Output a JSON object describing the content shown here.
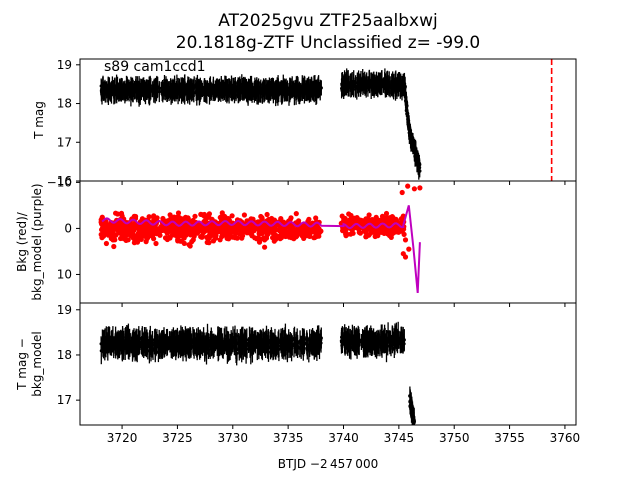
{
  "chart_data": {
    "title_line1": "AT2025gvu  ZTF25aalbxwj",
    "title_line2": "20.1818g-ZTF Unclassified z= -99.0",
    "xlabel": "BTJD −2 457 000",
    "x_ticks": [
      3720,
      3725,
      3730,
      3735,
      3740,
      3745,
      3750,
      3755,
      3760
    ],
    "xlim": [
      3716.2,
      3761.0
    ],
    "colors": {
      "flux": "#000000",
      "bkg": "#ff0000",
      "bkg_model": "#bf00bf",
      "marker_line": "#ff0000"
    },
    "panels": [
      {
        "type": "scatter",
        "ylabel": "T mag",
        "ylim": [
          19.15,
          16.0
        ],
        "y_ticks": [
          16,
          17,
          18,
          19
        ],
        "annotation": "s89 cam1ccd1",
        "vline_x": 3758.8,
        "segments": [
          {
            "x_range": [
              3718.1,
              3738.0
            ],
            "level": 18.35,
            "scatter": 0.22
          },
          {
            "x_range": [
              3739.8,
              3745.5
            ],
            "level": 18.5,
            "scatter": 0.25
          }
        ],
        "rise": {
          "x": [
            3745.5,
            3745.8,
            3746.1,
            3746.4,
            3746.7,
            3746.9
          ],
          "y": [
            18.5,
            17.6,
            17.1,
            16.8,
            16.5,
            16.3
          ]
        }
      },
      {
        "type": "scatter",
        "ylabel": "Bkg (red)/\nbkg_model (purple)",
        "ylabel_lines": [
          "Bkg (red)/",
          "bkg_model (purple)"
        ],
        "ylim": [
          -10.3,
          16.2
        ],
        "y_ticks": [
          -10,
          0,
          10
        ],
        "segments": [
          {
            "x_range": [
              3718.1,
              3738.0
            ],
            "level": 0,
            "scatter": 3.8
          },
          {
            "x_range": [
              3739.8,
              3745.5
            ],
            "level": -0.5,
            "scatter": 3.2
          }
        ],
        "model": {
          "x": [
            3718.2,
            3725,
            3730,
            3738,
            3740,
            3745.4,
            3745.9,
            3746.3,
            3746.7,
            3746.9
          ],
          "y": [
            -1.8,
            -1.0,
            -1.2,
            -0.8,
            -0.5,
            -0.7,
            -5.0,
            4.0,
            14.0,
            3.0
          ]
        }
      },
      {
        "type": "scatter",
        "ylabel": "T mag −\nbkg_model",
        "ylabel_lines": [
          "T mag −",
          "bkg_model"
        ],
        "ylim": [
          19.15,
          16.45
        ],
        "y_ticks": [
          17,
          18,
          19
        ],
        "segments": [
          {
            "x_range": [
              3718.1,
              3738.0
            ],
            "level": 18.25,
            "scatter": 0.28
          },
          {
            "x_range": [
              3739.8,
              3745.5
            ],
            "level": 18.3,
            "scatter": 0.25
          }
        ],
        "rise": {
          "x": [
            3746.0,
            3746.2,
            3746.4
          ],
          "y": [
            17.0,
            16.7,
            16.5
          ]
        }
      }
    ]
  }
}
